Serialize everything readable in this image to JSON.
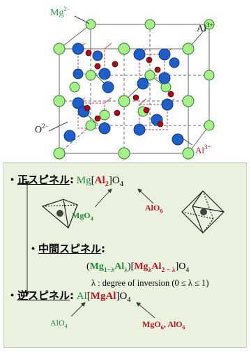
{
  "structure": {
    "label_mg": "Mg",
    "label_mg_charge": "2−",
    "label_o": "O",
    "label_o_charge": "2−",
    "label_al": "Al",
    "label_al_charge": "3+"
  },
  "normal": {
    "bullet": "・",
    "name": "正スピネル",
    "colon": ":",
    "f_a": "Mg",
    "f_open": "[",
    "f_b": "Al",
    "f_b_sub": "2",
    "f_close": "]",
    "f_o": "O",
    "f_o_sub": "4",
    "site_a": "MgO",
    "site_a_sub": "4",
    "site_b": "AlO",
    "site_b_sub": "6"
  },
  "intermediate": {
    "bullet": "・",
    "name": "中間スピネル",
    "colon": ":",
    "p1": "(",
    "mg": "Mg",
    "mg_sub": "1−λ",
    "al": "Al",
    "al_sub": "λ",
    "p2": ")[",
    "mg2": "Mg",
    "mg2_sub": "λ",
    "al2": "Al",
    "al2_sub": "2 − λ",
    "p3": "]O",
    "o_sub": "4",
    "note": "λ : degree of inversion (0 ≤ λ ≤ 1)"
  },
  "inverse": {
    "bullet": "・",
    "name": "逆スピネル",
    "colon": ":",
    "f_a": "Al",
    "f_open": "[",
    "f_b": "MgAl",
    "f_close": "]",
    "f_o": "O",
    "f_o_sub": "4",
    "site_a": "AlO",
    "site_a_sub": "4",
    "site_b": "MgO",
    "site_b_sub": "6",
    "site_b2": ", AlO",
    "site_b2_sub": "6"
  },
  "colors": {
    "mg_atom": "#a6f08a",
    "o_atom": "#1f5fc8",
    "al_atom": "#a40f1a",
    "green_text": "#1f8a3c",
    "red_text": "#c1121f",
    "panel_bg": "#eaf1df"
  }
}
